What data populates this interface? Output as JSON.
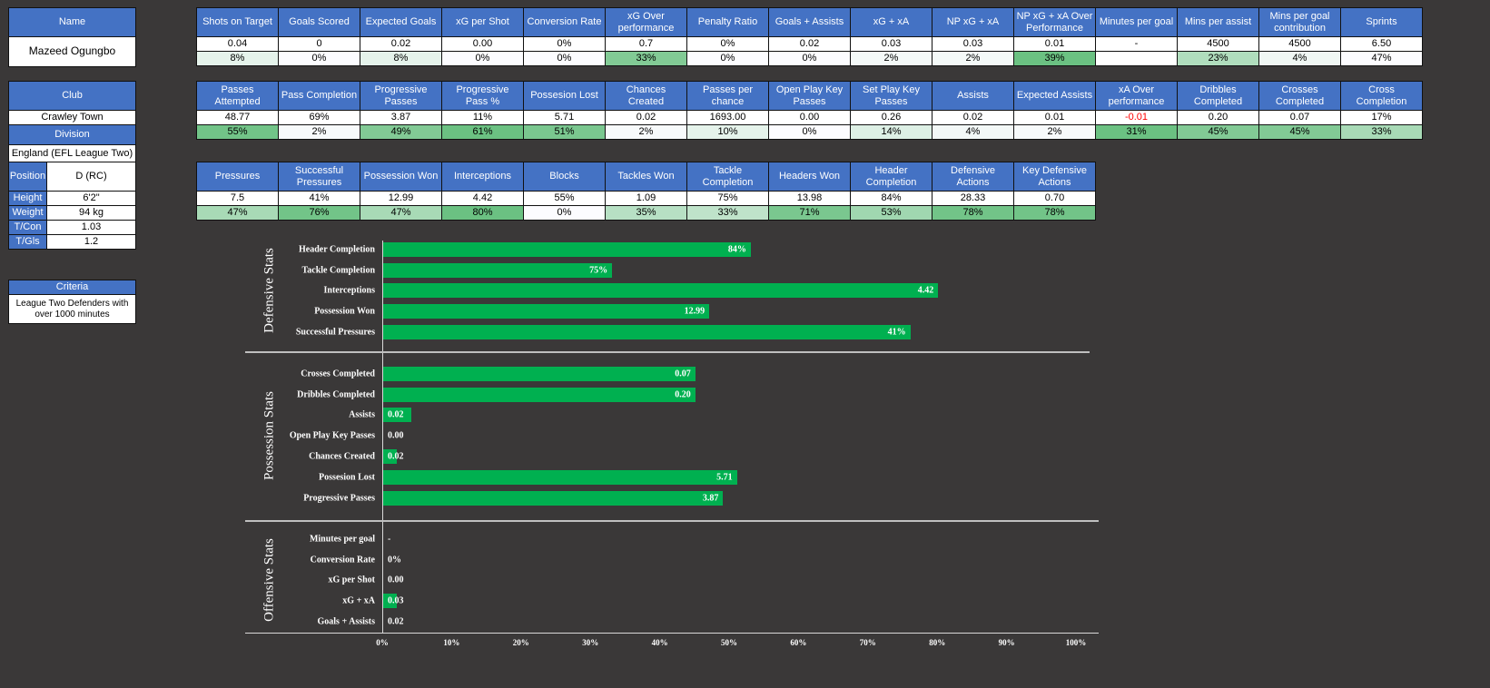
{
  "profile": {
    "name_header": "Name",
    "name": "Mazeed Ogungbo",
    "club_header": "Club",
    "club": "Crawley Town",
    "division_header": "Division",
    "division": "England (EFL League Two)",
    "position_label": "Position",
    "position": "D (RC)",
    "height_label": "Height",
    "height": "6'2\"",
    "weight_label": "Weight",
    "weight": "94 kg",
    "tcon_label": "T/Con",
    "tcon": "1.03",
    "tgls_label": "T/Gls",
    "tgls": "1.2",
    "criteria_header": "Criteria",
    "criteria": "League Two Defenders with over 1000 minutes"
  },
  "tables": [
    {
      "headers": [
        "Shots on Target",
        "Goals Scored",
        "Expected Goals",
        "xG per Shot",
        "Conversion Rate",
        "xG Over performance",
        "Penalty Ratio",
        "Goals + Assists",
        "xG + xA",
        "NP xG + xA",
        "NP xG + xA Over Performance",
        "Minutes per goal",
        "Mins per assist",
        "Mins per goal contribution",
        "Sprints"
      ],
      "values": [
        "0.04",
        "0",
        "0.02",
        "0.00",
        "0%",
        "0.7",
        "0%",
        "0.02",
        "0.03",
        "0.03",
        "0.01",
        "-",
        "4500",
        "4500",
        "6.50"
      ],
      "percentiles": [
        "8%",
        "0%",
        "8%",
        "0%",
        "0%",
        "33%",
        "0%",
        "0%",
        "2%",
        "2%",
        "39%",
        "",
        "23%",
        "4%",
        "47%"
      ],
      "shade": [
        0.15,
        0,
        0.15,
        0,
        0,
        0.8,
        0,
        0,
        0.05,
        0.05,
        0.95,
        -1,
        0.5,
        0.08,
        0
      ]
    },
    {
      "headers": [
        "Passes Attempted",
        "Pass Completion",
        "Progressive Passes",
        "Progressive Pass %",
        "Possesion Lost",
        "Chances Created",
        "Passes per chance",
        "Open Play Key Passes",
        "Set Play Key Passes",
        "Assists",
        "Expected Assists",
        "xA Over performance",
        "Dribbles Completed",
        "Crosses Completed",
        "Cross Completion"
      ],
      "values": [
        "48.77",
        "69%",
        "3.87",
        "11%",
        "5.71",
        "0.02",
        "1693.00",
        "0.00",
        "0.26",
        "0.02",
        "0.01",
        "-0.01",
        "0.20",
        "0.07",
        "17%"
      ],
      "percentiles": [
        "55%",
        "2%",
        "49%",
        "61%",
        "51%",
        "2%",
        "10%",
        "0%",
        "14%",
        "4%",
        "2%",
        "31%",
        "45%",
        "45%",
        "33%"
      ],
      "shade": [
        0.9,
        0.03,
        0.8,
        0.95,
        0.85,
        0.03,
        0.15,
        0,
        0.2,
        0.06,
        0.03,
        0.95,
        0.8,
        0.8,
        0.55
      ],
      "negative_color": "#ff0000"
    },
    {
      "headers": [
        "Pressures",
        "Successful Pressures",
        "Possession Won",
        "Interceptions",
        "Blocks",
        "Tackles Won",
        "Tackle Completion",
        "Headers Won",
        "Header Completion",
        "Defensive Actions",
        "Key Defensive Actions"
      ],
      "values": [
        "7.5",
        "41%",
        "12.99",
        "4.42",
        "55%",
        "1.09",
        "75%",
        "13.98",
        "84%",
        "28.33",
        "0.70"
      ],
      "percentiles": [
        "47%",
        "76%",
        "47%",
        "80%",
        "0%",
        "35%",
        "33%",
        "71%",
        "53%",
        "78%",
        "78%"
      ],
      "shade": [
        0.55,
        0.9,
        0.55,
        0.95,
        0,
        0.45,
        0.4,
        0.85,
        0.6,
        0.9,
        0.9
      ]
    }
  ],
  "chart_data": {
    "type": "bar",
    "orientation": "horizontal",
    "xlabel": "",
    "xlim": [
      0,
      100
    ],
    "x_ticks": [
      "0%",
      "10%",
      "20%",
      "30%",
      "40%",
      "50%",
      "60%",
      "70%",
      "80%",
      "90%",
      "100%"
    ],
    "sections": [
      {
        "title": "Defensive Stats",
        "items": [
          {
            "label": "Header Completion",
            "percentile": 53,
            "value_label": "84%"
          },
          {
            "label": "Tackle Completion",
            "percentile": 33,
            "value_label": "75%"
          },
          {
            "label": "Interceptions",
            "percentile": 80,
            "value_label": "4.42"
          },
          {
            "label": "Possession Won",
            "percentile": 47,
            "value_label": "12.99"
          },
          {
            "label": "Successful Pressures",
            "percentile": 76,
            "value_label": "41%"
          }
        ]
      },
      {
        "title": "Possession Stats",
        "items": [
          {
            "label": "Crosses Completed",
            "percentile": 45,
            "value_label": "0.07"
          },
          {
            "label": "Dribbles Completed",
            "percentile": 45,
            "value_label": "0.20"
          },
          {
            "label": "Assists",
            "percentile": 4,
            "value_label": "0.02"
          },
          {
            "label": "Open Play Key Passes",
            "percentile": 0,
            "value_label": "0.00"
          },
          {
            "label": "Chances Created",
            "percentile": 2,
            "value_label": "0.02"
          },
          {
            "label": "Possesion Lost",
            "percentile": 51,
            "value_label": "5.71"
          },
          {
            "label": "Progressive Passes",
            "percentile": 49,
            "value_label": "3.87"
          }
        ]
      },
      {
        "title": "Offensive Stats",
        "items": [
          {
            "label": "Minutes per goal",
            "percentile": 0,
            "value_label": "-"
          },
          {
            "label": "Conversion Rate",
            "percentile": 0,
            "value_label": "0%"
          },
          {
            "label": "xG per Shot",
            "percentile": 0,
            "value_label": "0.00"
          },
          {
            "label": "xG + xA",
            "percentile": 2,
            "value_label": "0.03"
          },
          {
            "label": "Goals + Assists",
            "percentile": 0,
            "value_label": "0.02"
          }
        ]
      }
    ],
    "colors": {
      "bar": "#00b050",
      "header": "#4472c4",
      "background": "#3a3838"
    }
  }
}
